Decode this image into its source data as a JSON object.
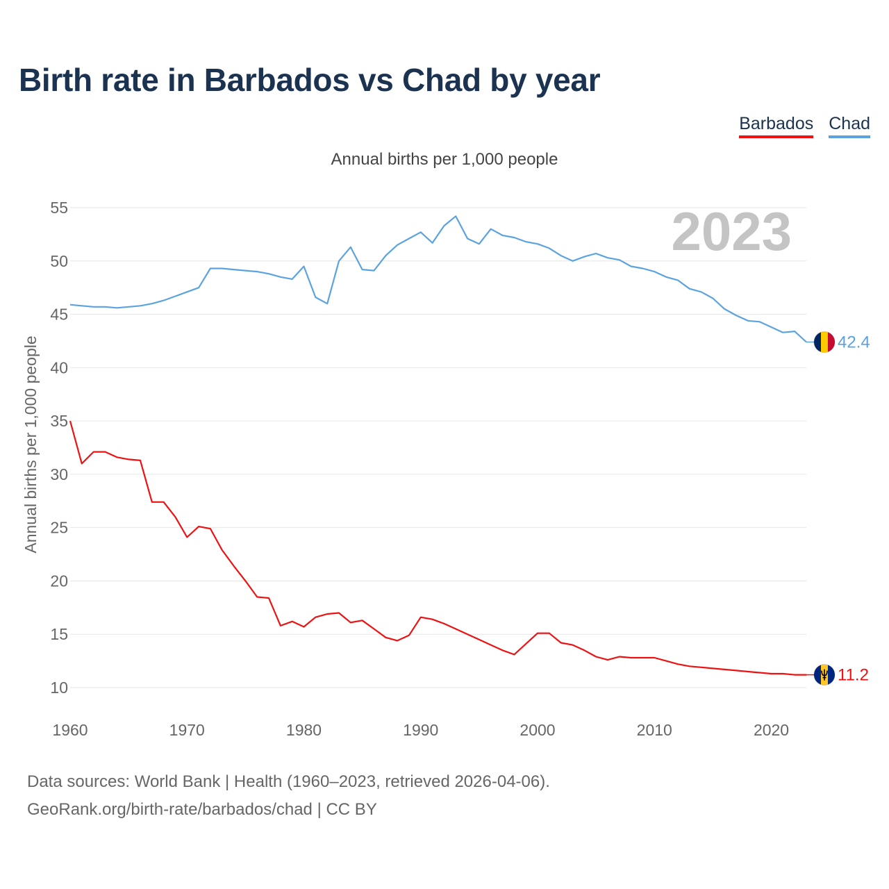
{
  "chart_data": {
    "type": "line",
    "title": "Birth rate in Barbados vs Chad by year",
    "subtitle": "Annual births per 1,000 people",
    "ylabel": "Annual births per 1,000 people",
    "xlabel": "",
    "year_label": "2023",
    "xlim": [
      1960,
      2023
    ],
    "ylim": [
      8,
      57
    ],
    "x_ticks": [
      1960,
      1970,
      1980,
      1990,
      2000,
      2010,
      2020
    ],
    "y_ticks": [
      10,
      15,
      20,
      25,
      30,
      35,
      40,
      45,
      50,
      55
    ],
    "x": [
      1960,
      1961,
      1962,
      1963,
      1964,
      1965,
      1966,
      1967,
      1968,
      1969,
      1970,
      1971,
      1972,
      1973,
      1974,
      1975,
      1976,
      1977,
      1978,
      1979,
      1980,
      1981,
      1982,
      1983,
      1984,
      1985,
      1986,
      1987,
      1988,
      1989,
      1990,
      1991,
      1992,
      1993,
      1994,
      1995,
      1996,
      1997,
      1998,
      1999,
      2000,
      2001,
      2002,
      2003,
      2004,
      2005,
      2006,
      2007,
      2008,
      2009,
      2010,
      2011,
      2012,
      2013,
      2014,
      2015,
      2016,
      2017,
      2018,
      2019,
      2020,
      2021,
      2022,
      2023
    ],
    "series": [
      {
        "name": "Barbados",
        "color": "#ee1111",
        "end_label": "11.2",
        "values": [
          35.0,
          31.0,
          32.1,
          32.1,
          31.6,
          31.4,
          31.3,
          27.4,
          27.4,
          26.0,
          24.1,
          25.1,
          24.9,
          22.9,
          21.4,
          20.0,
          18.5,
          18.4,
          15.8,
          16.2,
          15.7,
          16.6,
          16.9,
          17.0,
          16.1,
          16.3,
          15.5,
          14.7,
          14.4,
          14.9,
          16.6,
          16.4,
          16.0,
          15.5,
          15.0,
          14.5,
          14.0,
          13.5,
          13.1,
          14.1,
          15.1,
          15.1,
          14.2,
          14.0,
          13.5,
          12.9,
          12.6,
          12.9,
          12.8,
          12.8,
          12.8,
          12.5,
          12.2,
          12.0,
          11.9,
          11.8,
          11.7,
          11.6,
          11.5,
          11.4,
          11.3,
          11.3,
          11.2,
          11.2
        ]
      },
      {
        "name": "Chad",
        "color": "#5ba3e0",
        "end_label": "42.4",
        "values": [
          45.9,
          45.8,
          45.7,
          45.7,
          45.6,
          45.7,
          45.8,
          46.0,
          46.3,
          46.7,
          47.1,
          47.5,
          49.3,
          49.3,
          49.2,
          49.1,
          49.0,
          48.8,
          48.5,
          48.3,
          49.5,
          46.6,
          46.0,
          50.0,
          51.3,
          49.2,
          49.1,
          50.5,
          51.5,
          52.1,
          52.7,
          51.7,
          53.3,
          54.2,
          52.1,
          51.6,
          53.0,
          52.4,
          52.2,
          51.8,
          51.6,
          51.2,
          50.5,
          50.0,
          50.4,
          50.7,
          50.3,
          50.1,
          49.5,
          49.3,
          49.0,
          48.5,
          48.2,
          47.4,
          47.1,
          46.5,
          45.5,
          44.9,
          44.4,
          44.3,
          43.8,
          43.3,
          43.4,
          42.4
        ]
      }
    ]
  },
  "legend": {
    "barbados_label": "Barbados",
    "chad_label": "Chad",
    "barbados_color": "#ee1111",
    "chad_color": "#5ba3e0"
  },
  "footer": {
    "line1": "Data sources: World Bank | Health (1960–2023, retrieved 2026-04-06).",
    "line2": "GeoRank.org/birth-rate/barbados/chad | CC BY"
  },
  "icons": {
    "barbados_flag": "barbados-flag-icon",
    "chad_flag": "chad-flag-icon"
  }
}
